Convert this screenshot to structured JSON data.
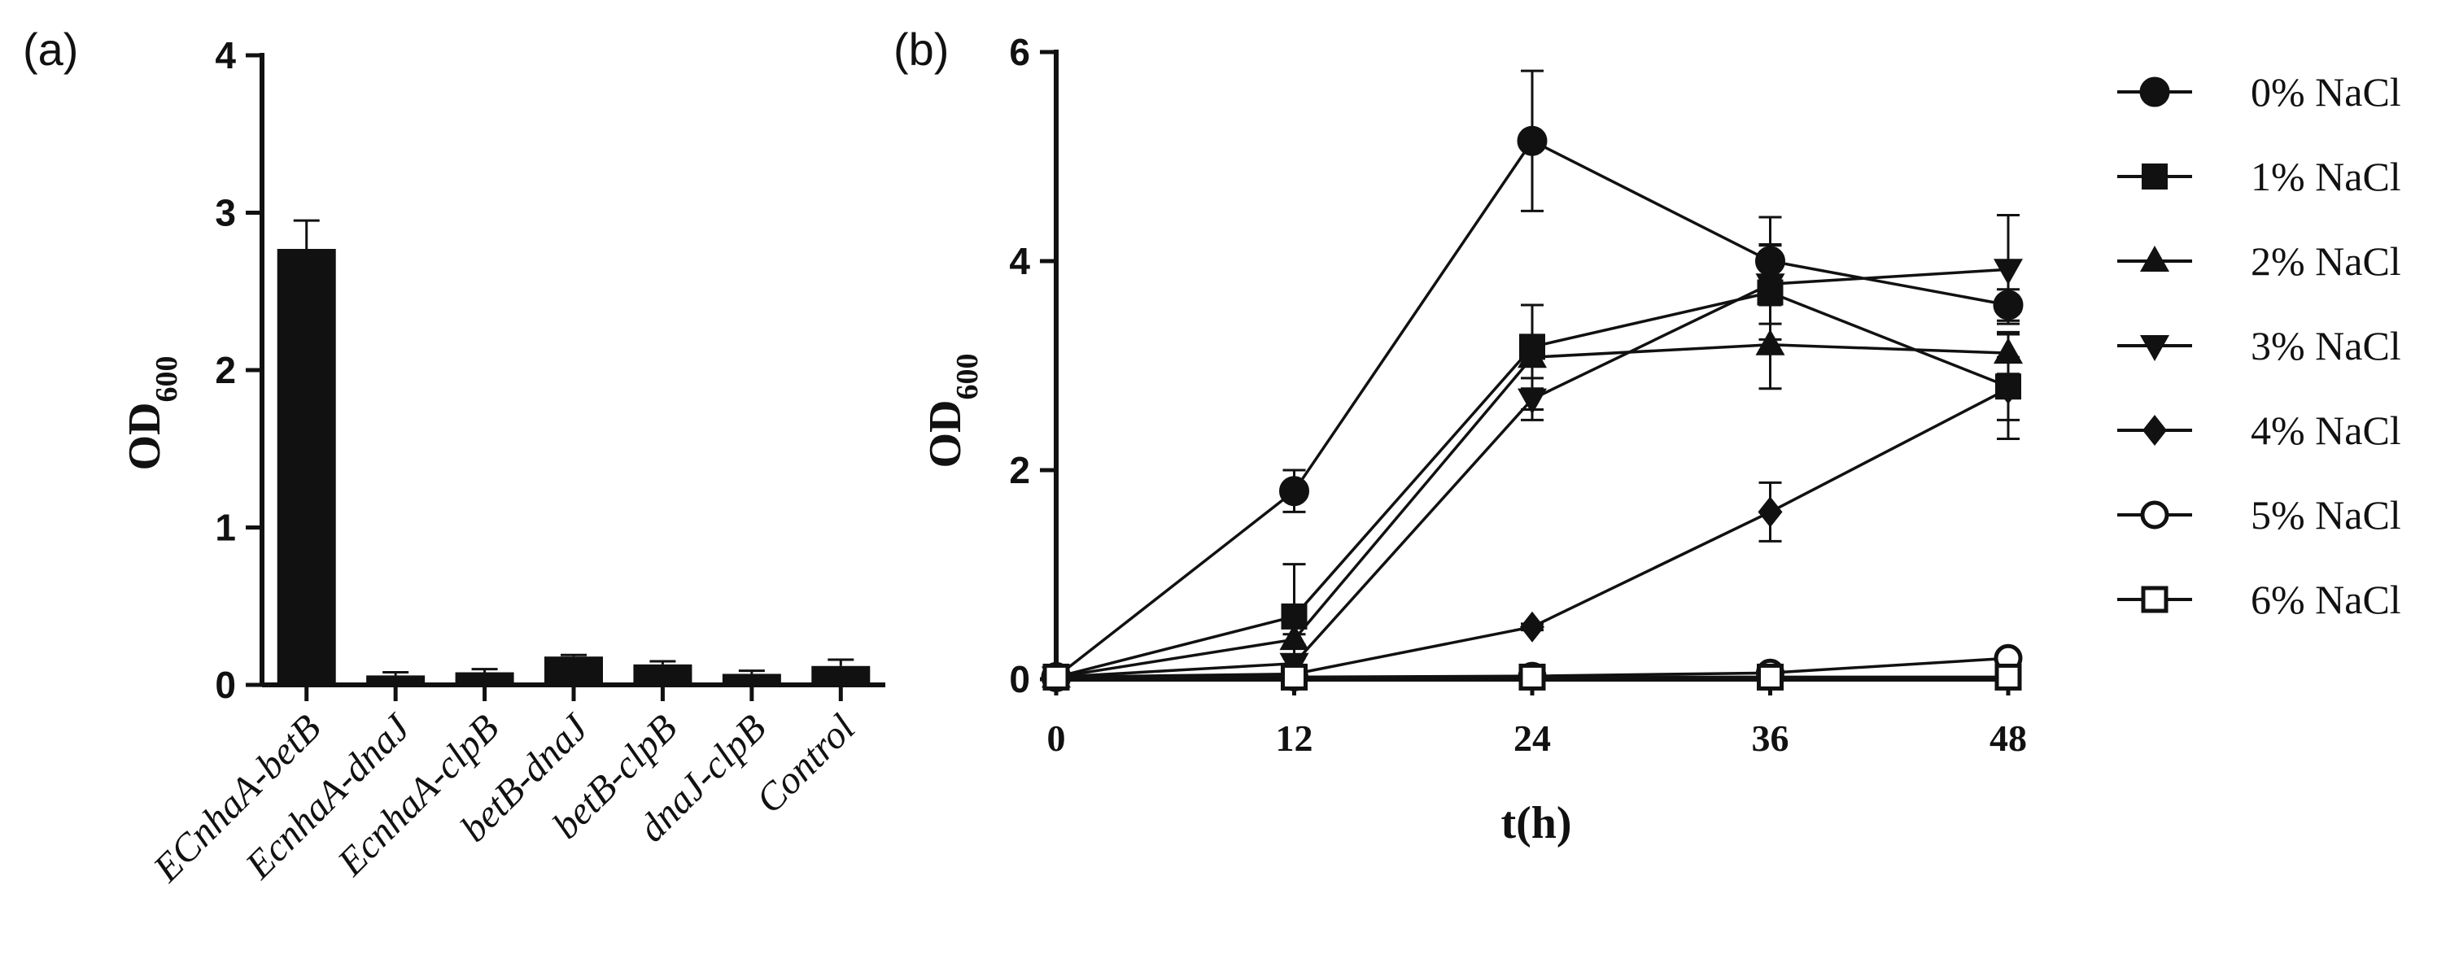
{
  "panels": {
    "a_label": "(a)",
    "b_label": "(b)"
  },
  "chart_data": [
    {
      "type": "bar",
      "panel": "(a)",
      "title": "",
      "xlabel": "",
      "ylabel": "OD",
      "ylabel_sub": "600",
      "ylim": [
        0,
        4
      ],
      "yticks": [
        0,
        1,
        2,
        3,
        4
      ],
      "categories": [
        "ECnhaA-betB",
        "EcnhaA-dnaJ",
        "EcnhaA-clpB",
        "betB-dnaJ",
        "betB-clpB",
        "dnaJ-clpB",
        "Control"
      ],
      "values": [
        2.77,
        0.06,
        0.08,
        0.18,
        0.13,
        0.07,
        0.12
      ],
      "errors": [
        0.18,
        0.02,
        0.02,
        0.01,
        0.02,
        0.02,
        0.04
      ],
      "grid": false
    },
    {
      "type": "line",
      "panel": "(b)",
      "title": "",
      "xlabel": "t(h)",
      "ylabel": "OD",
      "ylabel_sub": "600",
      "x": [
        0,
        12,
        24,
        36,
        48
      ],
      "xlim": [
        0,
        48
      ],
      "ylim": [
        0,
        6
      ],
      "yticks": [
        0,
        2,
        4,
        6
      ],
      "grid": false,
      "legend_position": "right",
      "series": [
        {
          "name": "0% NaCl",
          "marker": "circle-filled",
          "values": [
            0.02,
            1.8,
            5.15,
            4.0,
            3.58
          ],
          "errors": [
            0,
            0.2,
            0.67,
            0.42,
            0.15
          ]
        },
        {
          "name": "1% NaCl",
          "marker": "square-filled",
          "values": [
            0.02,
            0.6,
            3.18,
            3.7,
            2.8
          ],
          "errors": [
            0,
            0.5,
            0.4,
            0.45,
            0.5
          ]
        },
        {
          "name": "2% NaCl",
          "marker": "triangle-up-filled",
          "values": [
            0.02,
            0.38,
            3.08,
            3.2,
            3.12
          ],
          "errors": [
            0,
            0.05,
            0.5,
            0.42,
            0.2
          ]
        },
        {
          "name": "3% NaCl",
          "marker": "triangle-down-filled",
          "values": [
            0.02,
            0.15,
            2.68,
            3.78,
            3.92
          ],
          "errors": [
            0,
            0.05,
            0.2,
            0.38,
            0.52
          ]
        },
        {
          "name": "4% NaCl",
          "marker": "diamond-filled",
          "values": [
            0.02,
            0.05,
            0.5,
            1.6,
            2.78
          ],
          "errors": [
            0,
            0.02,
            0.03,
            0.28,
            0.3
          ]
        },
        {
          "name": "5% NaCl",
          "marker": "circle-open",
          "values": [
            0.02,
            0.02,
            0.03,
            0.06,
            0.2
          ],
          "errors": [
            0,
            0,
            0,
            0.01,
            0.02
          ]
        },
        {
          "name": "6% NaCl",
          "marker": "square-open",
          "values": [
            0.02,
            0.02,
            0.02,
            0.02,
            0.02
          ],
          "errors": [
            0,
            0,
            0,
            0,
            0
          ]
        }
      ]
    }
  ]
}
